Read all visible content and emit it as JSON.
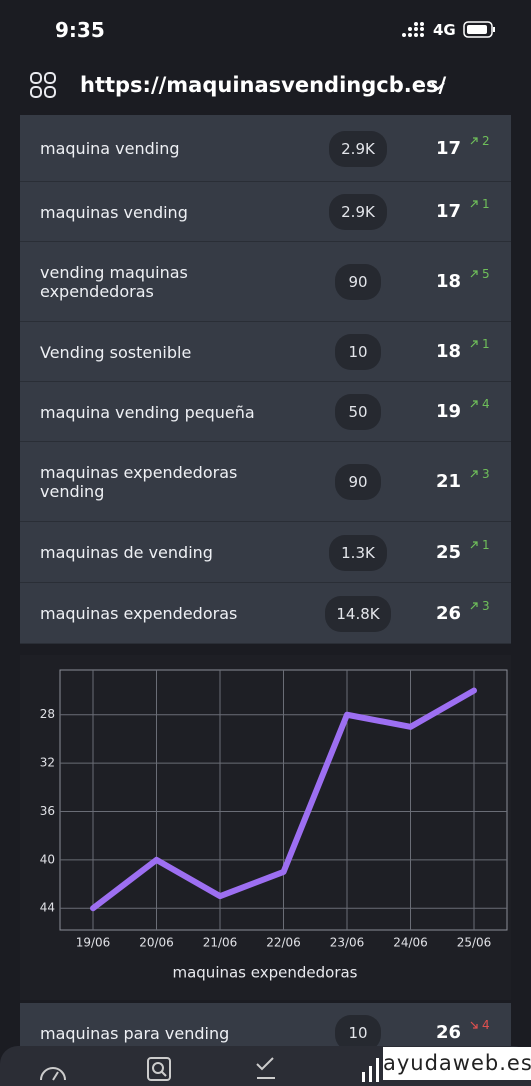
{
  "status_bar": {
    "time": "9:35",
    "network": "4G"
  },
  "header": {
    "url": "https://maquinasvendingcb.es/"
  },
  "keywords": {
    "rows": [
      {
        "keyword": "maquina vending",
        "volume": "2.9K",
        "position": 17,
        "change": 2,
        "trend": "up"
      },
      {
        "keyword": "maquinas vending",
        "volume": "2.9K",
        "position": 17,
        "change": 1,
        "trend": "up"
      },
      {
        "keyword": "vending maquinas expendedoras",
        "volume": "90",
        "position": 18,
        "change": 5,
        "trend": "up"
      },
      {
        "keyword": "Vending sostenible",
        "volume": "10",
        "position": 18,
        "change": 1,
        "trend": "up"
      },
      {
        "keyword": "maquina vending pequeña",
        "volume": "50",
        "position": 19,
        "change": 4,
        "trend": "up"
      },
      {
        "keyword": "maquinas expendedoras vending",
        "volume": "90",
        "position": 21,
        "change": 3,
        "trend": "up"
      },
      {
        "keyword": "maquinas de vending",
        "volume": "1.3K",
        "position": 25,
        "change": 1,
        "trend": "up"
      },
      {
        "keyword": "maquinas expendedoras",
        "volume": "14.8K",
        "position": 26,
        "change": 3,
        "trend": "up"
      }
    ]
  },
  "chart_data": {
    "type": "line",
    "x_label": "maquinas expendedoras",
    "categories": [
      "19/06",
      "20/06",
      "21/06",
      "22/06",
      "23/06",
      "24/06",
      "25/06"
    ],
    "values": [
      44,
      40,
      43,
      41,
      28,
      29,
      26
    ],
    "color": "#9d6ff2",
    "ylim": [
      45.8,
      24.3
    ],
    "yticks": [
      28,
      32,
      36,
      40,
      44
    ],
    "grid": true
  },
  "keywords_more": {
    "rows": [
      {
        "keyword": "maquinas para vending",
        "volume": "10",
        "position": 26,
        "change": 4,
        "trend": "down"
      }
    ]
  },
  "watermark": "ayudaweb.es"
}
